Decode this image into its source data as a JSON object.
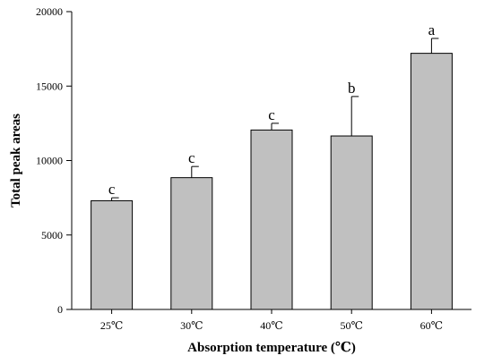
{
  "chart_data": {
    "type": "bar",
    "title": "",
    "xlabel": "Absorption temperature (℃)",
    "ylabel": "Total peak areas",
    "ylim": [
      0,
      20000
    ],
    "yticks": [
      0,
      5000,
      10000,
      15000,
      20000
    ],
    "categories": [
      "25℃",
      "30℃",
      "40℃",
      "50℃",
      "60℃"
    ],
    "values": [
      7300,
      8850,
      12050,
      11650,
      17200
    ],
    "error_upper": [
      200,
      750,
      450,
      2650,
      1000
    ],
    "annotations": [
      "c",
      "c",
      "c",
      "b",
      "a"
    ],
    "grid": false,
    "legend": "none",
    "bar_color": "#c0c0c0"
  }
}
